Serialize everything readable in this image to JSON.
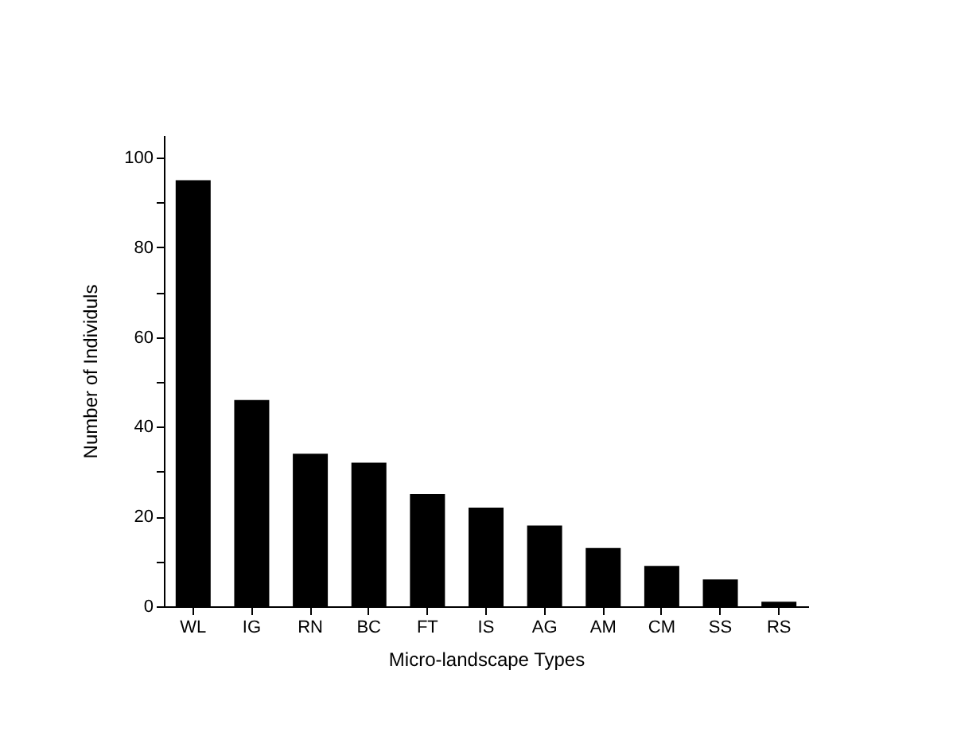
{
  "chart_data": {
    "type": "bar",
    "xlabel": "Micro-landscape Types",
    "ylabel": "Number of Individuls",
    "categories": [
      "WL",
      "IG",
      "RN",
      "BC",
      "FT",
      "IS",
      "AG",
      "AM",
      "CM",
      "SS",
      "RS"
    ],
    "values": [
      95,
      46,
      34,
      32,
      25,
      22,
      18,
      13,
      9,
      6,
      1
    ],
    "color": "#000000",
    "ylim": [
      0,
      105
    ],
    "yticks": [
      0,
      {
        "value": 10,
        "label": null
      },
      20,
      {
        "value": 30,
        "label": null
      },
      40,
      {
        "value": 50,
        "label": null
      },
      60,
      {
        "value": 70,
        "label": null
      },
      80,
      {
        "value": 90,
        "label": null
      },
      100
    ],
    "grid": false
  }
}
